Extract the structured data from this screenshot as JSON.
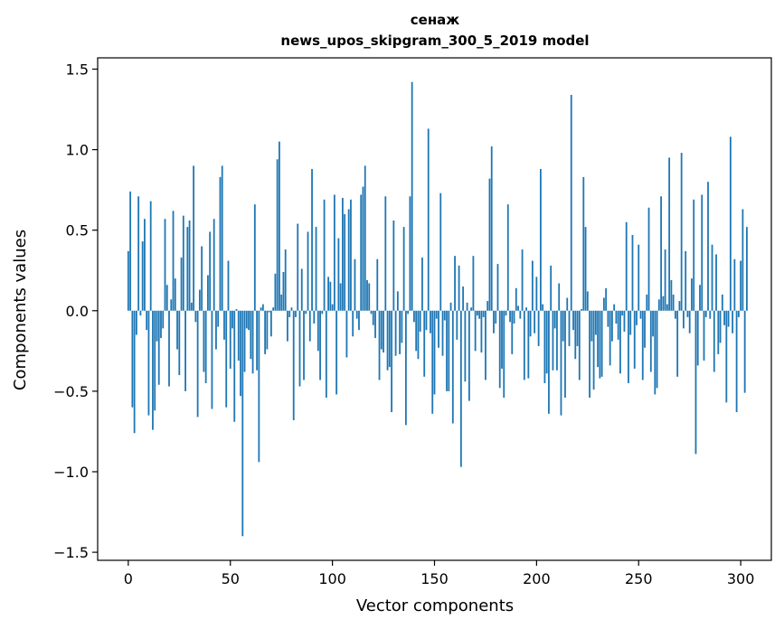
{
  "chart_data": {
    "type": "bar",
    "title_line1": "сенаж",
    "title_line2": "news_upos_skipgram_300_5_2019 model",
    "xlabel": "Vector components",
    "ylabel": "Components values",
    "xlim": [
      -15,
      315
    ],
    "ylim": [
      -1.55,
      1.57
    ],
    "xticks": [
      0,
      50,
      100,
      150,
      200,
      250,
      300
    ],
    "yticks": [
      1.5,
      1.0,
      0.5,
      0.0,
      -0.5,
      -1.0,
      -1.5
    ],
    "ytick_labels": [
      "1.5",
      "1.0",
      "0.5",
      "0.0",
      "−0.5",
      "−1.0",
      "−1.5"
    ],
    "bar_color": "#1f77b4",
    "grid": false,
    "values": [
      0.37,
      0.74,
      -0.6,
      -0.76,
      -0.15,
      0.71,
      -0.03,
      0.43,
      0.57,
      -0.12,
      -0.65,
      0.68,
      -0.74,
      -0.62,
      -0.19,
      -0.46,
      -0.17,
      -0.11,
      0.57,
      0.16,
      -0.47,
      0.07,
      0.62,
      0.2,
      -0.24,
      -0.4,
      0.33,
      0.59,
      -0.5,
      0.52,
      0.56,
      0.05,
      0.9,
      -0.07,
      -0.66,
      0.13,
      0.4,
      -0.38,
      -0.45,
      0.22,
      0.49,
      -0.61,
      0.57,
      -0.24,
      -0.1,
      0.83,
      0.9,
      -0.18,
      -0.6,
      0.31,
      -0.36,
      -0.11,
      -0.69,
      0.01,
      -0.31,
      -0.53,
      -1.4,
      -0.38,
      -0.11,
      -0.12,
      -0.3,
      -0.39,
      0.66,
      -0.37,
      -0.94,
      0.02,
      0.04,
      -0.27,
      -0.24,
      -0.01,
      -0.16,
      0.02,
      0.23,
      0.94,
      1.05,
      0.1,
      0.24,
      0.38,
      -0.19,
      -0.04,
      0.02,
      -0.68,
      -0.04,
      0.54,
      -0.47,
      0.26,
      -0.43,
      -0.02,
      0.49,
      -0.19,
      0.88,
      -0.08,
      0.52,
      -0.25,
      -0.43,
      -0.02,
      0.69,
      -0.54,
      0.21,
      0.18,
      0.04,
      0.72,
      -0.52,
      0.45,
      0.17,
      0.7,
      0.6,
      -0.29,
      0.63,
      0.69,
      -0.16,
      0.32,
      -0.05,
      -0.12,
      0.72,
      0.77,
      0.9,
      0.19,
      0.17,
      -0.02,
      -0.09,
      -0.17,
      0.32,
      -0.43,
      -0.24,
      -0.26,
      0.71,
      -0.37,
      -0.35,
      -0.63,
      0.56,
      -0.28,
      0.12,
      -0.27,
      -0.2,
      0.52,
      -0.71,
      -0.02,
      0.71,
      1.42,
      -0.07,
      -0.25,
      -0.3,
      -0.13,
      0.33,
      -0.41,
      -0.12,
      1.13,
      -0.14,
      -0.64,
      -0.52,
      -0.05,
      -0.23,
      0.73,
      -0.28,
      -0.06,
      -0.5,
      -0.5,
      0.05,
      -0.7,
      0.34,
      -0.18,
      0.28,
      -0.97,
      0.15,
      -0.44,
      0.05,
      -0.56,
      0.02,
      0.34,
      -0.25,
      -0.03,
      -0.05,
      -0.26,
      -0.04,
      -0.43,
      0.06,
      0.82,
      1.02,
      -0.14,
      -0.08,
      0.29,
      -0.48,
      -0.36,
      -0.54,
      -0.03,
      0.66,
      -0.07,
      -0.27,
      -0.08,
      0.14,
      0.03,
      -0.05,
      0.38,
      -0.43,
      0.02,
      -0.42,
      -0.16,
      0.31,
      -0.14,
      0.21,
      -0.22,
      0.88,
      0.04,
      -0.45,
      -0.39,
      -0.64,
      0.28,
      -0.37,
      -0.11,
      -0.37,
      0.17,
      -0.65,
      -0.19,
      -0.54,
      0.08,
      -0.22,
      1.34,
      -0.12,
      -0.3,
      -0.22,
      -0.43,
      0.01,
      0.83,
      0.52,
      0.12,
      -0.54,
      -0.19,
      -0.49,
      -0.15,
      -0.35,
      -0.42,
      -0.41,
      0.08,
      0.14,
      -0.1,
      -0.34,
      -0.19,
      0.04,
      -0.08,
      -0.18,
      -0.39,
      -0.03,
      -0.13,
      0.55,
      -0.45,
      -0.15,
      0.47,
      -0.36,
      -0.09,
      0.41,
      -0.05,
      -0.43,
      -0.23,
      0.1,
      0.64,
      -0.38,
      -0.16,
      -0.52,
      -0.48,
      0.07,
      0.71,
      0.09,
      0.38,
      0.04,
      0.95,
      0.19,
      0.1,
      -0.05,
      -0.41,
      0.06,
      0.98,
      -0.11,
      0.37,
      -0.04,
      -0.14,
      0.2,
      0.69,
      -0.89,
      -0.34,
      0.16,
      0.72,
      -0.31,
      -0.04,
      0.8,
      -0.05,
      0.41,
      -0.38,
      0.35,
      -0.27,
      -0.2,
      0.1,
      -0.09,
      -0.57,
      -0.1,
      1.08,
      -0.14,
      0.32,
      -0.63,
      -0.04,
      0.31,
      0.63,
      -0.51,
      0.52
    ]
  }
}
